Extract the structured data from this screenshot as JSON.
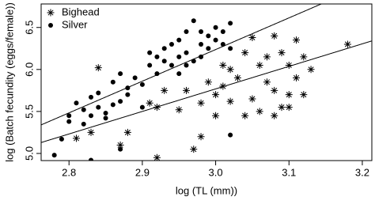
{
  "chart_data": {
    "type": "scatter",
    "xlabel": "log (TL (mm))",
    "ylabel": "log (Batch fecundity (eggs/female))",
    "xlim": [
      2.762,
      3.213
    ],
    "ylim": [
      4.915,
      6.78
    ],
    "xticks": [
      2.8,
      2.9,
      {
        "value": 3,
        "label": "3.0"
      },
      3.1,
      3.2
    ],
    "yticks": [
      {
        "value": 5,
        "label": "5.0"
      },
      5.5,
      {
        "value": 6,
        "label": "6.0"
      },
      6.5
    ],
    "legend": "top-left",
    "series": [
      {
        "name": "Bighead",
        "marker": "asterisk",
        "color": "#000000",
        "x": [
          2.81,
          2.84,
          2.83,
          2.87,
          2.88,
          2.91,
          2.92,
          2.93,
          2.92,
          2.95,
          2.96,
          2.97,
          2.98,
          2.99,
          3.0,
          3.0,
          3.01,
          3.01,
          3.02,
          3.03,
          3.04,
          3.04,
          3.05,
          3.05,
          3.06,
          3.06,
          3.07,
          3.07,
          3.08,
          3.08,
          3.09,
          3.09,
          3.1,
          3.1,
          3.1,
          3.11,
          3.11,
          3.12,
          3.12,
          3.13,
          3.18,
          3.02,
          3.08,
          2.98
        ],
        "y": [
          5.18,
          6.02,
          5.25,
          5.1,
          5.25,
          5.6,
          5.55,
          5.75,
          4.95,
          5.52,
          5.75,
          5.05,
          5.6,
          5.85,
          5.7,
          5.45,
          6.05,
          5.8,
          6.0,
          5.9,
          6.2,
          5.45,
          6.38,
          5.65,
          6.05,
          5.5,
          6.15,
          5.85,
          6.4,
          5.75,
          5.55,
          6.2,
          6.05,
          5.7,
          5.55,
          6.35,
          5.9,
          6.15,
          5.7,
          6.0,
          6.3,
          5.62,
          5.45,
          5.2
        ],
        "fit": {
          "x": [
            2.762,
            3.213
          ],
          "y": [
            5.13,
            6.34
          ]
        }
      },
      {
        "name": "Silver",
        "marker": "circle",
        "color": "#000000",
        "x": [
          2.78,
          2.79,
          2.8,
          2.8,
          2.81,
          2.82,
          2.82,
          2.83,
          2.83,
          2.84,
          2.84,
          2.85,
          2.85,
          2.86,
          2.86,
          2.87,
          2.87,
          2.88,
          2.88,
          2.89,
          2.9,
          2.9,
          2.91,
          2.91,
          2.92,
          2.92,
          2.93,
          2.93,
          2.94,
          2.94,
          2.95,
          2.95,
          2.96,
          2.96,
          2.97,
          2.97,
          2.98,
          2.98,
          2.99,
          2.99,
          3.0,
          3.0,
          3.01,
          3.01,
          3.02,
          3.02,
          3.02,
          2.87,
          2.83,
          2.96,
          2.98,
          2.95
        ],
        "y": [
          4.98,
          5.17,
          5.45,
          5.38,
          5.6,
          5.52,
          5.35,
          5.45,
          5.67,
          5.55,
          5.72,
          5.48,
          5.42,
          5.58,
          5.85,
          5.62,
          5.95,
          5.7,
          5.78,
          5.9,
          5.82,
          5.55,
          6.05,
          6.2,
          5.95,
          6.15,
          6.1,
          6.25,
          6.05,
          6.3,
          6.15,
          6.35,
          6.2,
          6.45,
          6.1,
          6.58,
          6.3,
          6.15,
          6.4,
          6.25,
          6.35,
          6.5,
          6.3,
          6.45,
          6.55,
          5.22,
          6.25,
          5.05,
          4.92,
          6.05,
          6.45,
          5.95
        ],
        "fit": {
          "x": [
            2.762,
            3.213
          ],
          "y": [
            5.34,
            7.04
          ]
        }
      }
    ]
  }
}
